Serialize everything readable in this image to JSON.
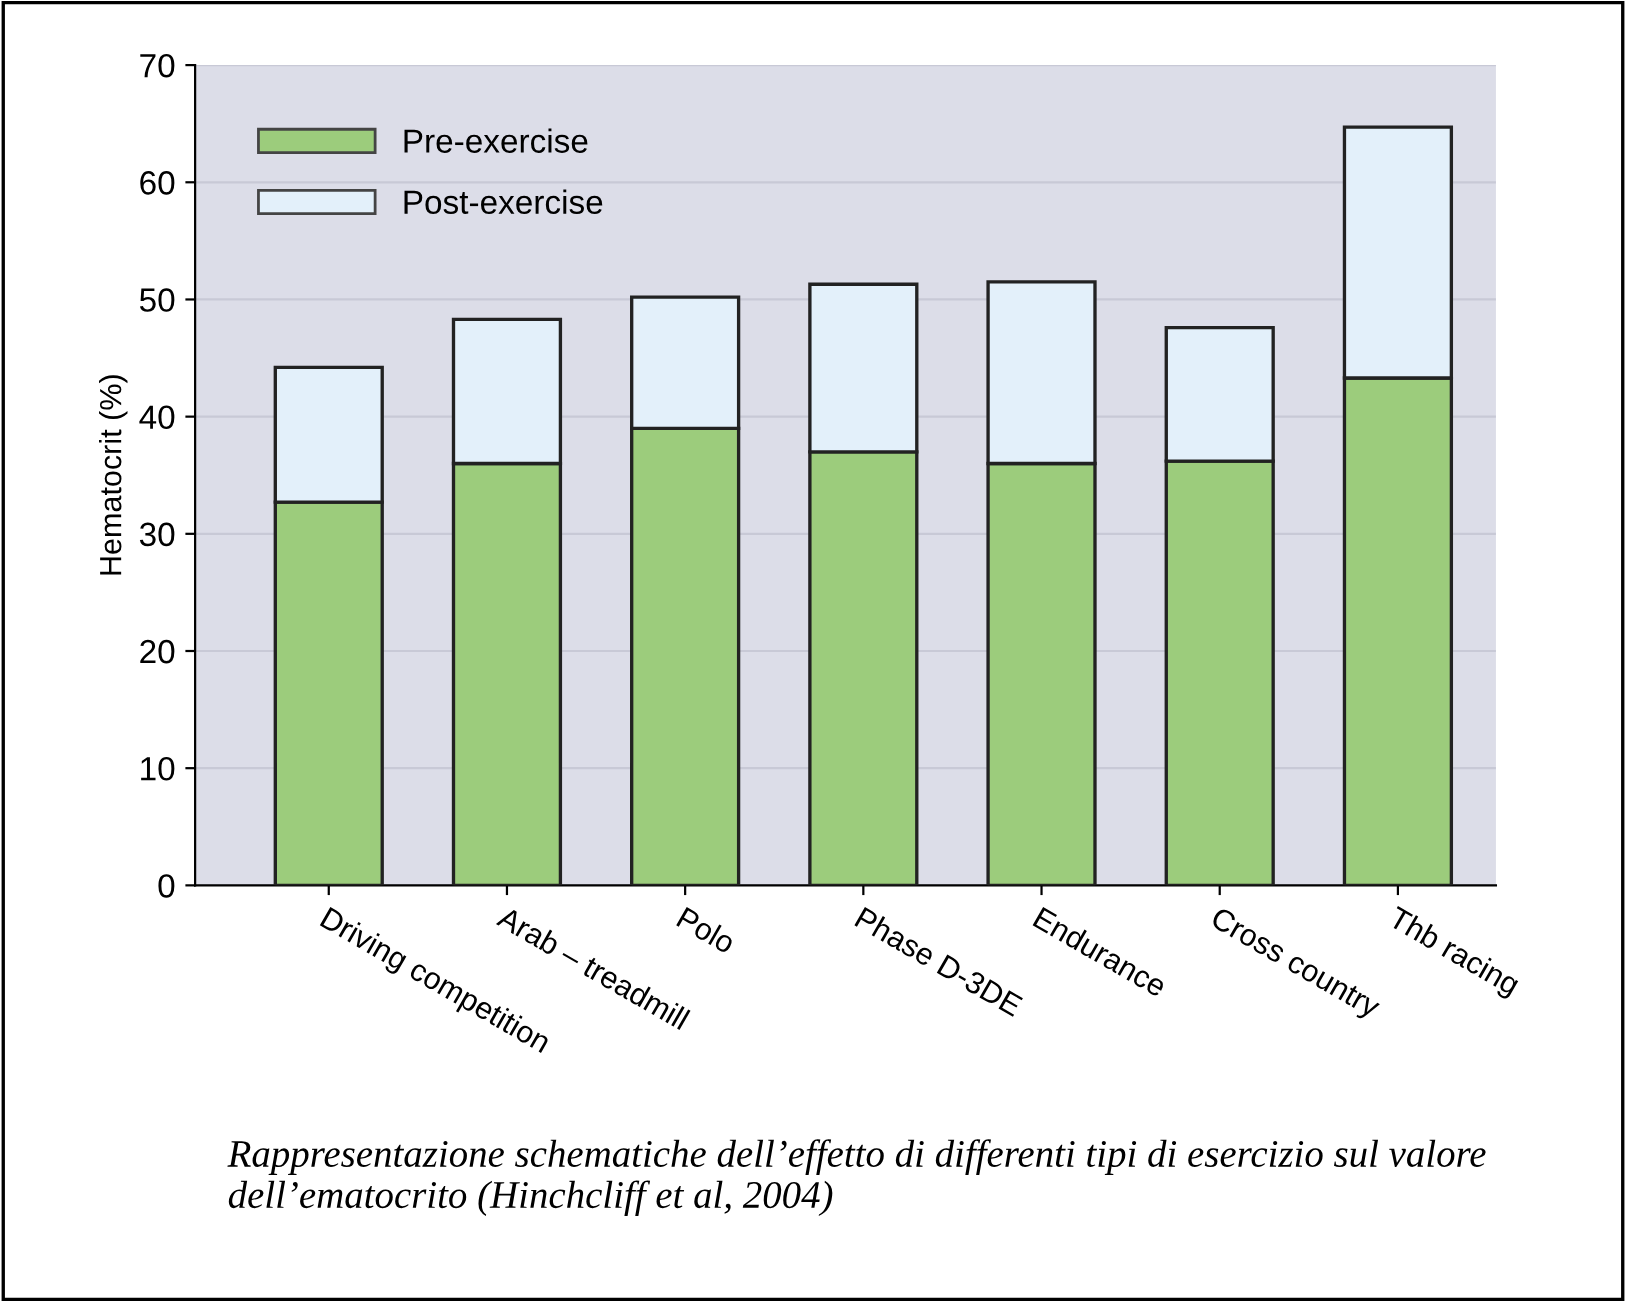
{
  "chart_data": {
    "type": "bar",
    "stacked": true,
    "ylabel": "Hematocrit (%)",
    "categories": [
      "Driving competition",
      "Arab – treadmill",
      "Polo",
      "Phase D-3DE",
      "Endurance",
      "Cross country",
      "Thb racing"
    ],
    "series": [
      {
        "name": "Pre-exercise",
        "color": "#9ccc7c",
        "values": [
          32.7,
          36.0,
          39.0,
          37.0,
          36.0,
          36.2,
          43.3
        ]
      },
      {
        "name": "Post-exercise",
        "color": "#e3f0fa",
        "values": [
          11.5,
          12.3,
          11.2,
          14.3,
          15.5,
          11.4,
          21.4
        ]
      }
    ],
    "ylim": [
      0,
      70
    ],
    "yticks": [
      0,
      10,
      20,
      30,
      40,
      50,
      60,
      70
    ],
    "grid": "y",
    "legend": "top left",
    "annotations": [
      "Rappresentazione schematiche dell’effetto di differenti tipi di esercizio sul valore dell’ematocrito (Hinchcliff et al, 2004)"
    ]
  }
}
